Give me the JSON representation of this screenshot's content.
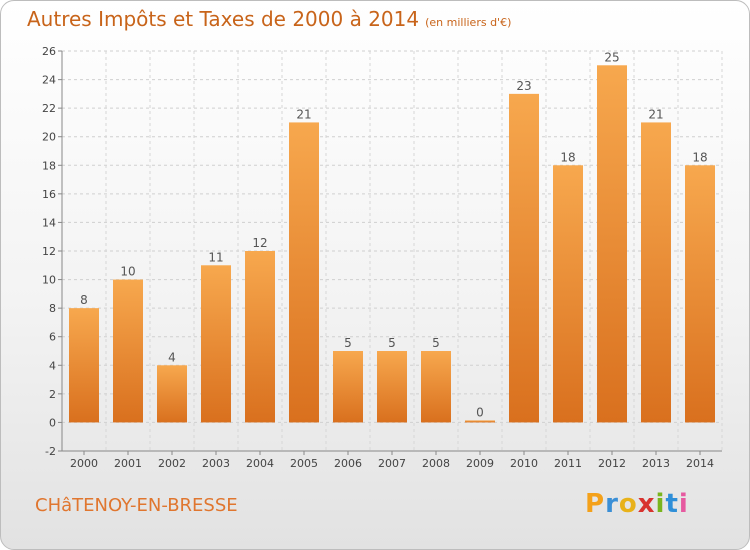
{
  "page": {
    "title": "Autres Impôts et Taxes de 2000 à 2014",
    "unit": "(en milliers d'€)",
    "place": "CHâTENOY-EN-BRESSE",
    "logo": [
      "P",
      "r",
      "o",
      "x",
      "i",
      "t",
      "i"
    ],
    "logo_colors": [
      "#f4a11a",
      "#3a8fd6",
      "#e8b21a",
      "#d8332f",
      "#7ab51d",
      "#2f8fd8",
      "#e65aa0"
    ]
  },
  "chart_data": {
    "type": "bar",
    "title": "Autres Impôts et Taxes de 2000 à 2014",
    "subtitle": "(en milliers d'€)",
    "xlabel": "",
    "ylabel": "",
    "categories": [
      "2000",
      "2001",
      "2002",
      "2003",
      "2004",
      "2005",
      "2006",
      "2007",
      "2008",
      "2009",
      "2010",
      "2011",
      "2012",
      "2013",
      "2014"
    ],
    "values": [
      8,
      10,
      4,
      11,
      12,
      21,
      5,
      5,
      5,
      0,
      23,
      18,
      25,
      21,
      18
    ],
    "ylim": [
      -2,
      26
    ],
    "yticks": [
      -2,
      0,
      2,
      4,
      6,
      8,
      10,
      12,
      14,
      16,
      18,
      20,
      22,
      24,
      26
    ],
    "grid": true,
    "colors": {
      "bar_top": "#f7a84e",
      "bar_bottom": "#d9701e",
      "axis": "#888888"
    }
  }
}
